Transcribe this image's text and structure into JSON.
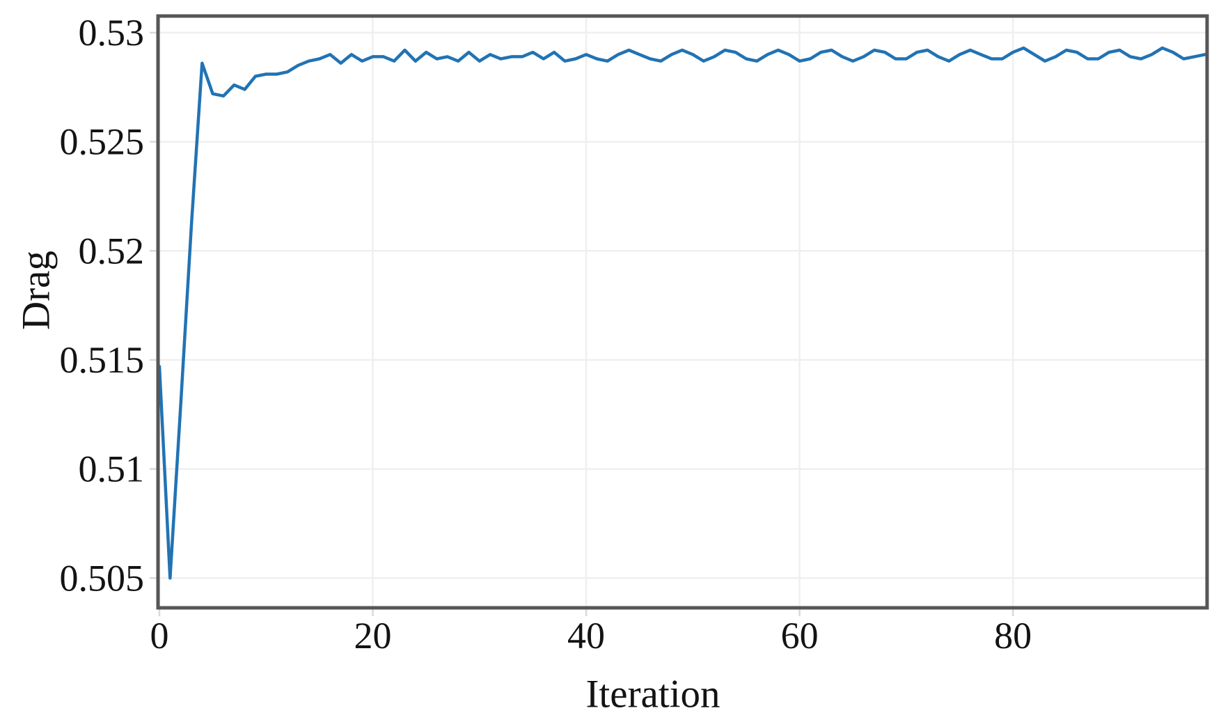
{
  "figure": {
    "background_color": "#ffffff",
    "text_color": "#131313",
    "border_color": "#565658",
    "grid_color": "#efefef",
    "tick_color": "#d9d9d9"
  },
  "chart_data": {
    "type": "line",
    "title": "",
    "xlabel": "Iteration",
    "ylabel": "Drag",
    "grid": true,
    "legend": false,
    "xlim": [
      0,
      98
    ],
    "ylim": [
      0.5037,
      0.5307
    ],
    "xticks": [
      0,
      20,
      40,
      60,
      80
    ],
    "xtick_labels": [
      "0",
      "20",
      "40",
      "60",
      "80"
    ],
    "yticks": [
      0.505,
      0.51,
      0.515,
      0.52,
      0.525,
      0.53
    ],
    "ytick_labels": [
      "0.505",
      "0.51",
      "0.515",
      "0.52",
      "0.525",
      "0.53"
    ],
    "series": [
      {
        "name": "Drag",
        "color": "#2173b4",
        "line_width": 4.5,
        "x_start": 0,
        "x_step": 1,
        "y": [
          0.5147,
          0.505,
          0.513,
          0.5212,
          0.5286,
          0.5272,
          0.5271,
          0.5276,
          0.5274,
          0.528,
          0.5281,
          0.5281,
          0.5282,
          0.5285,
          0.5287,
          0.5288,
          0.529,
          0.5286,
          0.529,
          0.5287,
          0.5289,
          0.5289,
          0.5287,
          0.5292,
          0.5287,
          0.5291,
          0.5288,
          0.5289,
          0.5287,
          0.5291,
          0.5287,
          0.529,
          0.5288,
          0.5289,
          0.5289,
          0.5291,
          0.5288,
          0.5291,
          0.5287,
          0.5288,
          0.529,
          0.5288,
          0.5287,
          0.529,
          0.5292,
          0.529,
          0.5288,
          0.5287,
          0.529,
          0.5292,
          0.529,
          0.5287,
          0.5289,
          0.5292,
          0.5291,
          0.5288,
          0.5287,
          0.529,
          0.5292,
          0.529,
          0.5287,
          0.5288,
          0.5291,
          0.5292,
          0.5289,
          0.5287,
          0.5289,
          0.5292,
          0.5291,
          0.5288,
          0.5288,
          0.5291,
          0.5292,
          0.5289,
          0.5287,
          0.529,
          0.5292,
          0.529,
          0.5288,
          0.5288,
          0.5291,
          0.5293,
          0.529,
          0.5287,
          0.5289,
          0.5292,
          0.5291,
          0.5288,
          0.5288,
          0.5291,
          0.5292,
          0.5289,
          0.5288,
          0.529,
          0.5293,
          0.5291,
          0.5288,
          0.5289,
          0.529
        ]
      }
    ]
  }
}
